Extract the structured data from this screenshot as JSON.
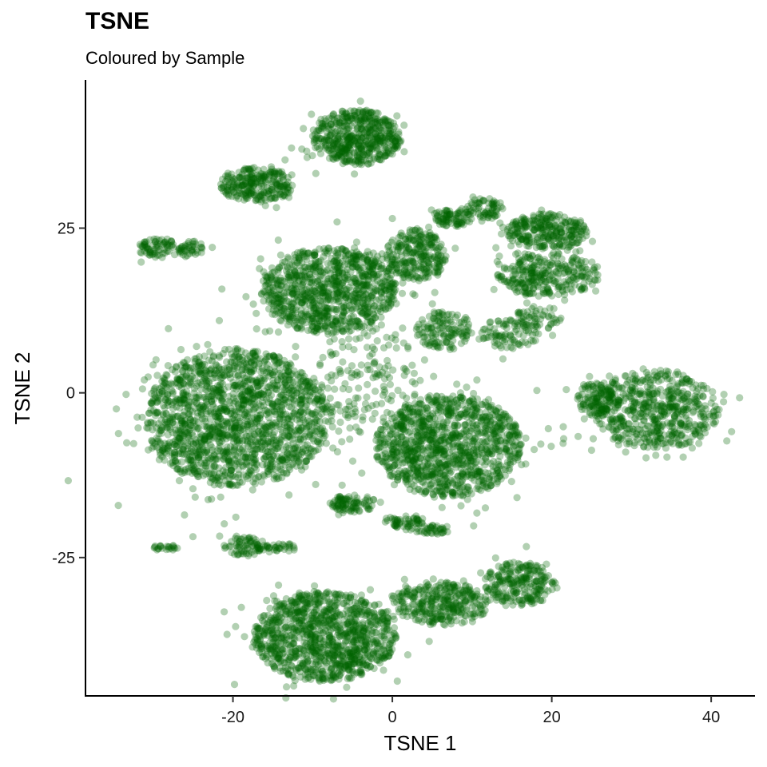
{
  "chart_data": {
    "type": "scatter",
    "title": "TSNE",
    "subtitle": "Coloured by Sample",
    "xlabel": "TSNE 1",
    "ylabel": "TSNE 2",
    "xlim": [
      -38.5,
      45.5
    ],
    "ylim": [
      -46,
      47.5
    ],
    "x_ticks": [
      -20,
      0,
      20,
      40
    ],
    "y_ticks": [
      -25,
      0,
      25
    ],
    "x_tick_labels": [
      "-20",
      "0",
      "20",
      "40"
    ],
    "y_tick_labels": [
      "-25",
      "0",
      "25"
    ],
    "grid": false,
    "legend": "none",
    "point_color": "#006400",
    "point_opacity": 0.3,
    "clusters": [
      {
        "cx": -4.5,
        "cy": 38.8,
        "rx": 5.6,
        "ry": 4.2,
        "n": 520
      },
      {
        "cx": -17.0,
        "cy": 31.6,
        "rx": 4.6,
        "ry": 2.7,
        "n": 260
      },
      {
        "cx": -29.3,
        "cy": 21.9,
        "rx": 2.6,
        "ry": 1.5,
        "n": 75
      },
      {
        "cx": -25.4,
        "cy": 21.9,
        "rx": 1.8,
        "ry": 1.2,
        "n": 40
      },
      {
        "cx": -8.0,
        "cy": 15.5,
        "rx": 8.5,
        "ry": 6.5,
        "n": 950
      },
      {
        "cx": 3.0,
        "cy": 21.0,
        "rx": 3.8,
        "ry": 4.0,
        "n": 260
      },
      {
        "cx": 7.5,
        "cy": 26.5,
        "rx": 2.5,
        "ry": 1.3,
        "n": 80
      },
      {
        "cx": 11.5,
        "cy": 28.0,
        "rx": 2.5,
        "ry": 1.5,
        "n": 70
      },
      {
        "cx": 19.5,
        "cy": 24.5,
        "rx": 5.2,
        "ry": 2.7,
        "n": 280
      },
      {
        "cx": 19.5,
        "cy": 17.8,
        "rx": 6.4,
        "ry": 3.2,
        "n": 300
      },
      {
        "cx": 6.5,
        "cy": 9.5,
        "rx": 3.5,
        "ry": 3.0,
        "n": 130
      },
      {
        "cx": 14.5,
        "cy": 9.0,
        "rx": 4.0,
        "ry": 2.2,
        "n": 100
      },
      {
        "cx": -19.5,
        "cy": -3.8,
        "rx": 11.5,
        "ry": 10.5,
        "n": 1700
      },
      {
        "cx": 7.0,
        "cy": -8.0,
        "rx": 9.2,
        "ry": 7.8,
        "n": 1150
      },
      {
        "cx": 33.0,
        "cy": -2.5,
        "rx": 8.0,
        "ry": 6.0,
        "n": 600
      },
      {
        "cx": 25.5,
        "cy": -1.0,
        "rx": 2.3,
        "ry": 2.5,
        "n": 110
      },
      {
        "cx": -8.5,
        "cy": -37.0,
        "rx": 9.0,
        "ry": 6.8,
        "n": 1100
      },
      {
        "cx": 6.0,
        "cy": -32.0,
        "rx": 6.0,
        "ry": 3.3,
        "n": 320
      },
      {
        "cx": 16.0,
        "cy": -29.0,
        "rx": 4.5,
        "ry": 3.3,
        "n": 240
      },
      {
        "cx": -5.0,
        "cy": -16.8,
        "rx": 3.0,
        "ry": 1.3,
        "n": 90
      },
      {
        "cx": 1.5,
        "cy": -19.5,
        "rx": 2.6,
        "ry": 1.0,
        "n": 55
      },
      {
        "cx": 5.0,
        "cy": -20.8,
        "rx": 2.3,
        "ry": 0.7,
        "n": 40
      },
      {
        "cx": -18.5,
        "cy": -23.3,
        "rx": 2.8,
        "ry": 1.4,
        "n": 75
      },
      {
        "cx": -14.0,
        "cy": -23.5,
        "rx": 2.0,
        "ry": 0.7,
        "n": 30
      },
      {
        "cx": -28.5,
        "cy": -23.5,
        "rx": 1.8,
        "ry": 0.4,
        "n": 22
      },
      {
        "cx": -3.0,
        "cy": 2.0,
        "rx": 6.5,
        "ry": 8.0,
        "n": 140
      },
      {
        "cx": 18.5,
        "cy": 11.5,
        "rx": 3.0,
        "ry": 1.8,
        "n": 45
      }
    ]
  }
}
